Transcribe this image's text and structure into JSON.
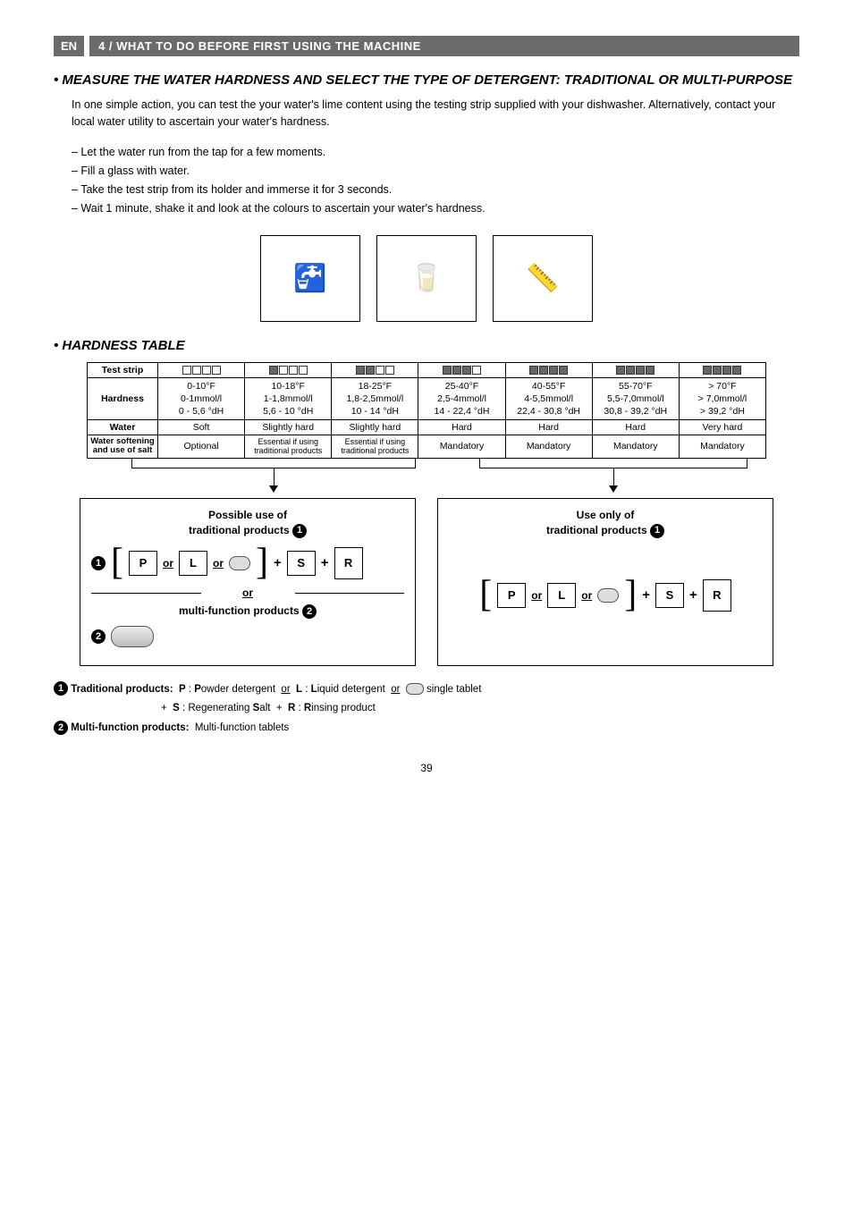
{
  "header": {
    "badge": "EN",
    "title": "4 / WHAT TO DO BEFORE FIRST USING THE MACHINE"
  },
  "section1": {
    "heading": "• MEASURE THE WATER HARDNESS AND SELECT THE TYPE OF DETERGENT: TRADITIONAL OR MULTI-PURPOSE",
    "intro": "In one simple action, you can test the your water's lime content using the testing strip supplied with your dishwasher. Alternatively, contact your local water utility to ascertain your water's hardness.",
    "steps": [
      "– Let the water run from the tap for a few moments.",
      "– Fill a glass with water.",
      "– Take the test strip from its holder and immerse it for 3 seconds.",
      "– Wait 1 minute, shake it and look at the colours to ascertain your water's hardness."
    ]
  },
  "section2": {
    "heading": "• HARDNESS TABLE",
    "rows": {
      "strip_label": "Test strip",
      "strip_fills": [
        0,
        1,
        2,
        3,
        4,
        4,
        4
      ],
      "hardness_label": "Hardness",
      "hardness": [
        {
          "f": "0-10°F",
          "m": "0-1mmol/l",
          "d": "0 - 5,6 °dH"
        },
        {
          "f": "10-18°F",
          "m": "1-1,8mmol/l",
          "d": "5,6 - 10 °dH"
        },
        {
          "f": "18-25°F",
          "m": "1,8-2,5mmol/l",
          "d": "10 - 14 °dH"
        },
        {
          "f": "25-40°F",
          "m": "2,5-4mmol/l",
          "d": "14 - 22,4 °dH"
        },
        {
          "f": "40-55°F",
          "m": "4-5,5mmol/l",
          "d": "22,4 - 30,8 °dH"
        },
        {
          "f": "55-70°F",
          "m": "5,5-7,0mmol/l",
          "d": "30,8 - 39,2 °dH"
        },
        {
          "f": "> 70°F",
          "m": "> 7,0mmol/l",
          "d": "> 39,2 °dH"
        }
      ],
      "water_label": "Water",
      "water": [
        "Soft",
        "Slightly hard",
        "Slightly hard",
        "Hard",
        "Hard",
        "Hard",
        "Very hard"
      ],
      "soft_label": "Water softening and use of salt",
      "soft": [
        "Optional",
        "Essential if using traditional products",
        "Essential if using traditional products",
        "Mandatory",
        "Mandatory",
        "Mandatory",
        "Mandatory"
      ]
    }
  },
  "boxes": {
    "left": {
      "title_l1": "Possible use of",
      "title_l2": "traditional products",
      "or_label": "or",
      "multi_label_l1": "multi-function products"
    },
    "right": {
      "title_l1": "Use only of",
      "title_l2": "traditional products"
    },
    "tokens": {
      "P": "P",
      "L": "L",
      "S": "S",
      "R": "R",
      "or": "or",
      "plus": "+"
    }
  },
  "legend": {
    "l1_label": "Traditional products:",
    "l1_text_a": "P : Powder detergent",
    "l1_or1": "or",
    "l1_text_b": "L : Liquid detergent",
    "l1_or2": "or",
    "l1_text_c": "single tablet",
    "l2_text": "+  S : Regenerating Salt  +  R : Rinsing product",
    "l3_label": "Multi-function products:",
    "l3_text": "Multi-function tablets"
  },
  "page_number": "39",
  "illus": {
    "a": "🚰",
    "b": "🥛",
    "c": "📏"
  }
}
